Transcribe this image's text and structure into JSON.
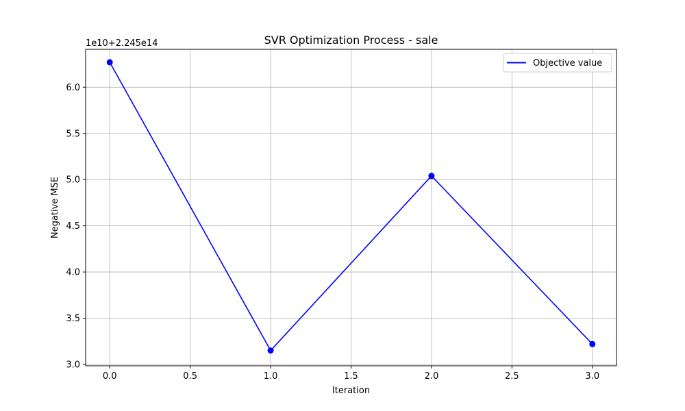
{
  "chart_data": {
    "type": "line",
    "title": "SVR Optimization Process - sale",
    "xlabel": "Iteration",
    "ylabel": "Negative MSE",
    "offset_text": "1e10+2.245e14",
    "x": [
      0,
      1,
      2,
      3
    ],
    "series": [
      {
        "name": "Objective value",
        "values": [
          6.27,
          3.15,
          5.04,
          3.22
        ],
        "color": "#0000ff",
        "marker": "circle"
      }
    ],
    "xlim": [
      -0.15,
      3.15
    ],
    "ylim": [
      2.985,
      6.41
    ],
    "xticks": [
      0.0,
      0.5,
      1.0,
      1.5,
      2.0,
      2.5,
      3.0
    ],
    "xtick_labels": [
      "0.0",
      "0.5",
      "1.0",
      "1.5",
      "2.0",
      "2.5",
      "3.0"
    ],
    "yticks": [
      3.0,
      3.5,
      4.0,
      4.5,
      5.0,
      5.5,
      6.0
    ],
    "ytick_labels": [
      "3.0",
      "3.5",
      "4.0",
      "4.5",
      "5.0",
      "5.5",
      "6.0"
    ],
    "grid": true,
    "legend_position": "top-right"
  }
}
